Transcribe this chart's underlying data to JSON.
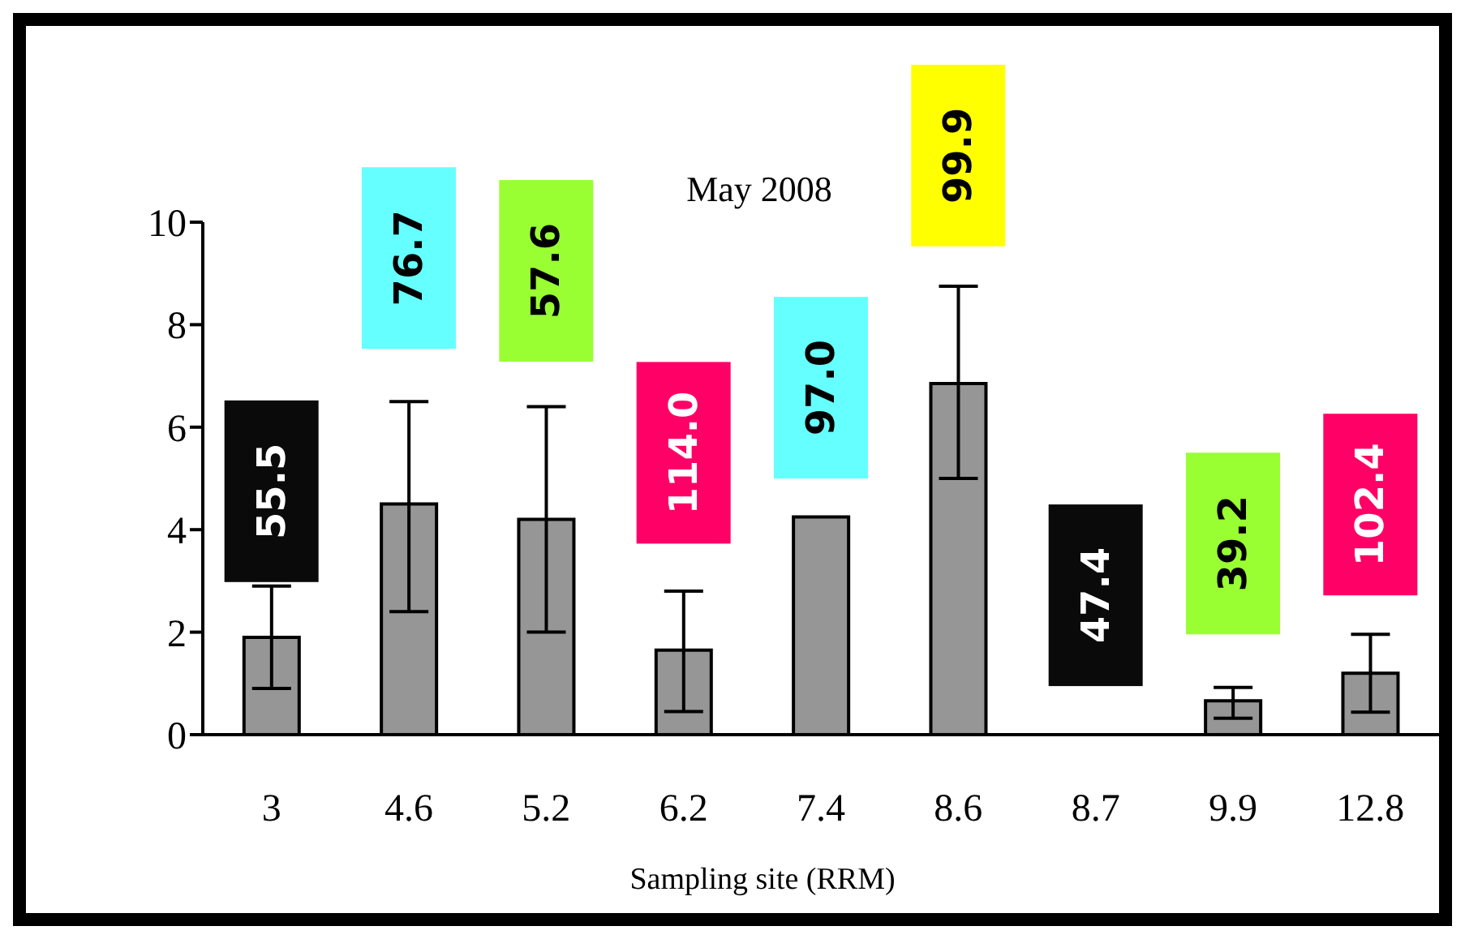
{
  "chart_data": {
    "type": "bar",
    "title": "May 2008",
    "xlabel": "Sampling site (RRM)",
    "categories": [
      "3",
      "4.6",
      "5.2",
      "6.2",
      "7.4",
      "8.6",
      "8.7",
      "9.9",
      "12.8"
    ],
    "values": [
      1.9,
      4.5,
      4.2,
      1.65,
      4.25,
      6.85,
      null,
      0.66,
      1.2
    ],
    "errors": [
      [
        0.9,
        2.9
      ],
      [
        2.4,
        6.5
      ],
      [
        2.0,
        6.4
      ],
      [
        0.45,
        2.8
      ],
      null,
      [
        5.0,
        8.75
      ],
      null,
      [
        0.32,
        0.92
      ],
      [
        0.44,
        1.96
      ]
    ],
    "color": "#969696",
    "ylim": [
      0,
      10
    ],
    "yticks": [
      0,
      2,
      4,
      6,
      8,
      10
    ],
    "grid": false,
    "legend": false,
    "annotations": [
      "55.5",
      "76.7",
      "57.6",
      "114.0",
      "97.0",
      "99.9",
      "47.4",
      "39.2",
      "102.4"
    ]
  }
}
